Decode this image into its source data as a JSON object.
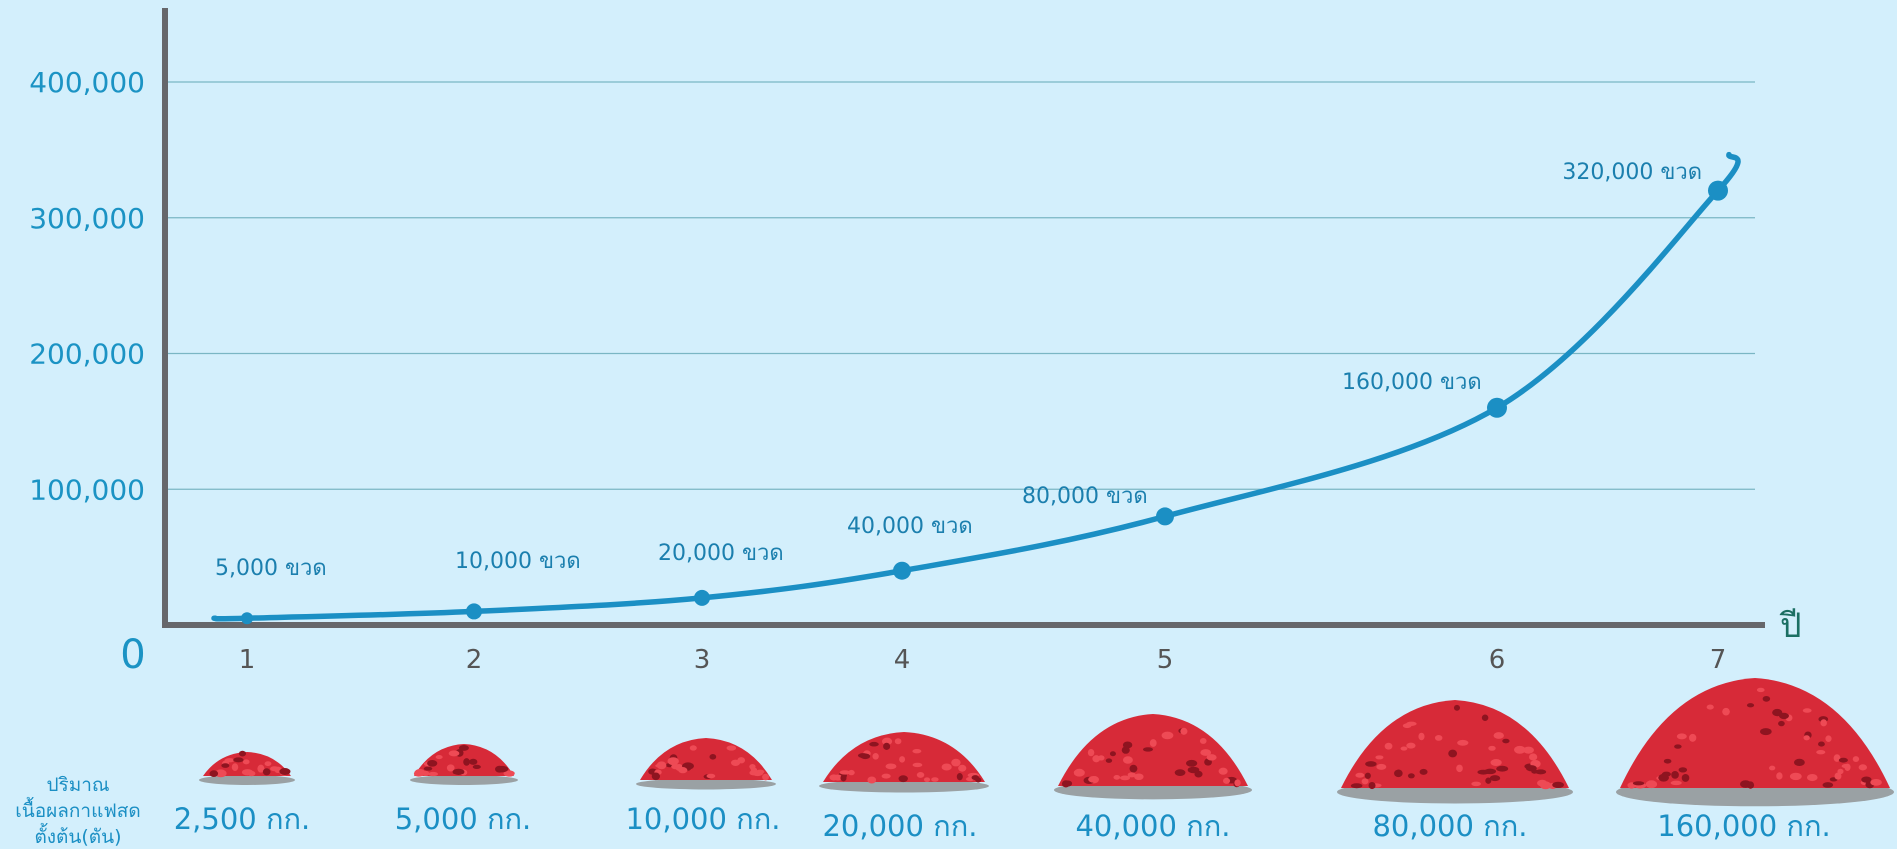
{
  "chart_data": {
    "type": "line",
    "x": [
      1,
      2,
      3,
      4,
      5,
      6,
      7
    ],
    "values": [
      5000,
      10000,
      20000,
      40000,
      80000,
      160000,
      320000
    ],
    "value_labels": [
      "5,000 ขวด",
      "10,000 ขวด",
      "20,000 ขวด",
      "40,000 ขวด",
      "80,000 ขวด",
      "160,000 ขวด",
      "320,000 ขวด"
    ],
    "ylim": [
      0,
      400000
    ],
    "yticks": [
      100000,
      200000,
      300000,
      400000
    ],
    "ytick_labels": [
      "100,000",
      "200,000",
      "300,000",
      "400,000"
    ],
    "origin_label": "0",
    "xlabel": "ปี",
    "grid": true,
    "line_color": "#1b8fc4",
    "background": "#d3effc"
  },
  "coffee_weights": {
    "caption": [
      "ปริมาณ",
      "เนื้อผลกาแฟสด",
      "ตั้งต้น(ตัน)"
    ],
    "labels": [
      "2,500 กก.",
      "5,000 กก.",
      "10,000 กก.",
      "20,000 กก.",
      "40,000 กก.",
      "80,000 กก.",
      "160,000 กก."
    ],
    "pile_color": "#d72a38"
  }
}
